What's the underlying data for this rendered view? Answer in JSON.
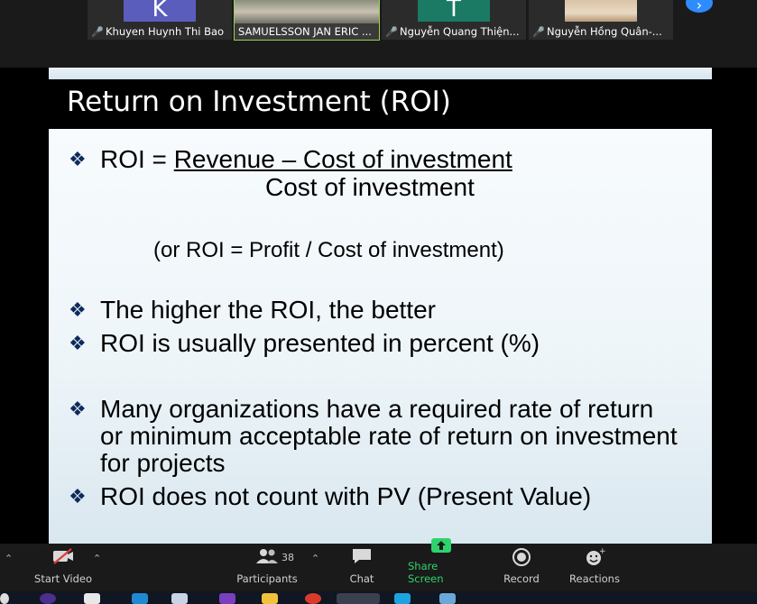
{
  "participants": [
    {
      "name": "Khuyen Huynh Thi Bao",
      "avatar_letter": "K",
      "muted": true
    },
    {
      "name": "SAMUELSSON JAN ERIC ...",
      "avatar_letter": "",
      "muted": false,
      "active": true
    },
    {
      "name": "Nguyễn Quang Thiện...",
      "avatar_letter": "T",
      "muted": true
    },
    {
      "name": "Nguyễn Hồng Quân-...",
      "avatar_letter": "",
      "muted": true
    }
  ],
  "slide": {
    "title": "Return on Investment (ROI)",
    "formula_prefix": "ROI = ",
    "formula_numerator": "Revenue – Cost of investment",
    "formula_denominator": "Cost of investment",
    "formula_alt": "(or ROI = Profit / Cost of investment)",
    "bullets": [
      "The higher the ROI, the better",
      "ROI is usually presented in percent (%)",
      "Many organizations have a required rate of return or minimum acceptable rate of return on investment for projects",
      "ROI does not count with PV (Present Value)"
    ],
    "bullet_glyph": "❖"
  },
  "toolbar": {
    "start_video": "Start Video",
    "participants": "Participants",
    "participant_count": "38",
    "chat": "Chat",
    "share_screen": "Share Screen",
    "record": "Record",
    "reactions": "Reactions"
  },
  "icons": {
    "mic_muted": "mic-muted-icon",
    "video_off": "video-off-icon"
  },
  "colors": {
    "share_green": "#2fd36b",
    "mute_red": "#e03c3c",
    "accent_blue": "#2d8cff"
  }
}
